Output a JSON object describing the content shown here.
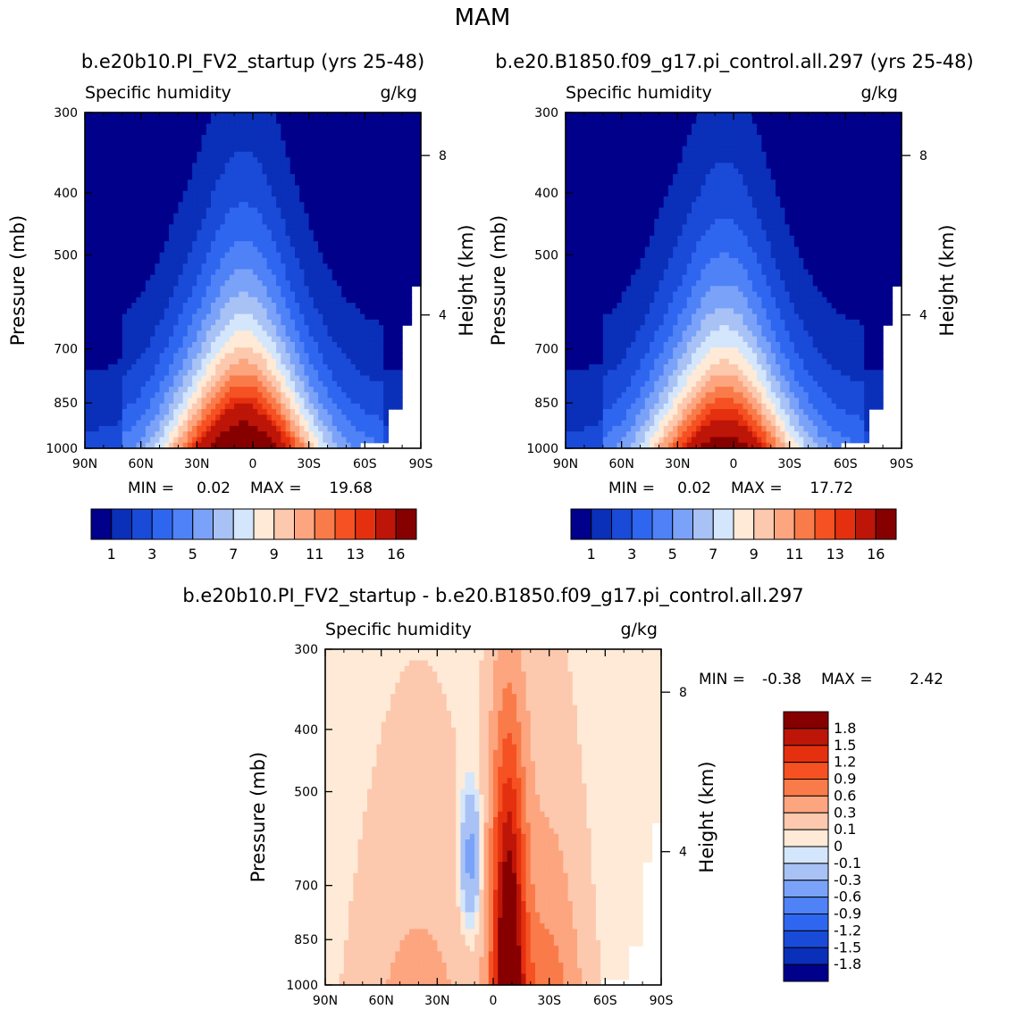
{
  "page_title": "MAM",
  "colors": {
    "abs_levels": [
      "#00008b",
      "#0a2fb8",
      "#1a4ad8",
      "#2f66f0",
      "#4f82f7",
      "#7aa2f8",
      "#a8c2f6",
      "#d4e6fb",
      "#feead6",
      "#fcc9ae",
      "#fca57f",
      "#fa7b4a",
      "#f55122",
      "#e5300f",
      "#bd1508",
      "#860000"
    ],
    "diff_levels": [
      "#00008b",
      "#0a2fb8",
      "#1a4ad8",
      "#2f66f0",
      "#4f82f7",
      "#7aa2f8",
      "#a8c2f6",
      "#d4e6fb",
      "#feead6",
      "#fcc9ae",
      "#fca57f",
      "#fa7b4a",
      "#f55122",
      "#e5300f",
      "#bd1508",
      "#860000"
    ]
  },
  "chart_data": [
    {
      "id": "panel_a",
      "type": "contour",
      "case_title": "b.e20b10.PI_FV2_startup (yrs 25-48)",
      "variable": "Specific humidity",
      "units": "g/kg",
      "ylabel": "Pressure (mb)",
      "ylabel_right": "Height (km)",
      "x_ticks": [
        "90N",
        "60N",
        "30N",
        "0",
        "30S",
        "60S",
        "90S"
      ],
      "x_range": [
        90,
        -90
      ],
      "y_ticks": [
        "300",
        "400",
        "500",
        "700",
        "850",
        "1000"
      ],
      "y_range_mb": [
        300,
        1000
      ],
      "height_ticks": [
        "8",
        "4"
      ],
      "min_label": "MIN =",
      "min_value": "0.02",
      "max_label": "MAX =",
      "max_value": "19.68",
      "contour_levels": [
        1,
        2,
        3,
        4,
        5,
        6,
        7,
        8,
        9,
        10,
        11,
        12,
        13,
        14,
        16
      ],
      "colorbar_labels": [
        "1",
        "3",
        "5",
        "7",
        "9",
        "11",
        "13",
        "16"
      ]
    },
    {
      "id": "panel_b",
      "type": "contour",
      "case_title": "b.e20.B1850.f09_g17.pi_control.all.297 (yrs 25-48)",
      "variable": "Specific humidity",
      "units": "g/kg",
      "ylabel": "Pressure (mb)",
      "ylabel_right": "Height (km)",
      "x_ticks": [
        "90N",
        "60N",
        "30N",
        "0",
        "30S",
        "60S",
        "90S"
      ],
      "x_range": [
        90,
        -90
      ],
      "y_ticks": [
        "300",
        "400",
        "500",
        "700",
        "850",
        "1000"
      ],
      "y_range_mb": [
        300,
        1000
      ],
      "height_ticks": [
        "8",
        "4"
      ],
      "min_label": "MIN =",
      "min_value": "0.02",
      "max_label": "MAX =",
      "max_value": "17.72",
      "contour_levels": [
        1,
        2,
        3,
        4,
        5,
        6,
        7,
        8,
        9,
        10,
        11,
        12,
        13,
        14,
        16
      ],
      "colorbar_labels": [
        "1",
        "3",
        "5",
        "7",
        "9",
        "11",
        "13",
        "16"
      ]
    },
    {
      "id": "panel_diff",
      "type": "contour",
      "case_title": "b.e20b10.PI_FV2_startup - b.e20.B1850.f09_g17.pi_control.all.297",
      "variable": "Specific humidity",
      "units": "g/kg",
      "ylabel": "Pressure (mb)",
      "ylabel_right": "Height (km)",
      "x_ticks": [
        "90N",
        "60N",
        "30N",
        "0",
        "30S",
        "60S",
        "90S"
      ],
      "x_range": [
        90,
        -90
      ],
      "y_ticks": [
        "300",
        "400",
        "500",
        "700",
        "850",
        "1000"
      ],
      "y_range_mb": [
        300,
        1000
      ],
      "height_ticks": [
        "8",
        "4"
      ],
      "min_label": "MIN =",
      "min_value": "-0.38",
      "max_label": "MAX =",
      "max_value": "2.42",
      "contour_levels": [
        -1.8,
        -1.5,
        -1.2,
        -0.9,
        -0.6,
        -0.3,
        -0.1,
        0,
        0.1,
        0.3,
        0.6,
        0.9,
        1.2,
        1.5,
        1.8
      ],
      "colorbar_labels": [
        "1.8",
        "1.5",
        "1.2",
        "0.9",
        "0.6",
        "0.3",
        "0.1",
        "0",
        "-0.1",
        "-0.3",
        "-0.6",
        "-0.9",
        "-1.2",
        "-1.5",
        "-1.8"
      ]
    }
  ]
}
